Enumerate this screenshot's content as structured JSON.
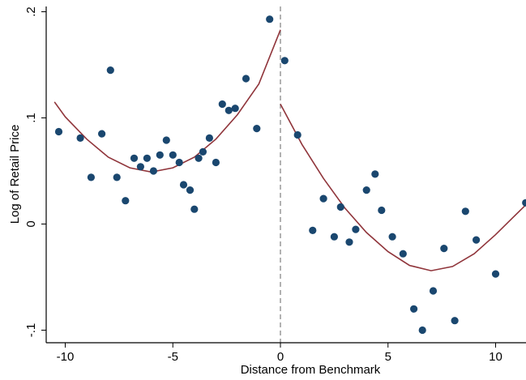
{
  "chart_data": {
    "type": "scatter",
    "title": "",
    "xlabel": "Distance from Benchmark",
    "ylabel": "Log of Retail Price",
    "xlim": [
      -10.5,
      11.4
    ],
    "ylim": [
      -0.1,
      0.2
    ],
    "x_ticks": [
      {
        "value": -10,
        "label": "-10"
      },
      {
        "value": -5,
        "label": "-5"
      },
      {
        "value": 0,
        "label": "0"
      },
      {
        "value": 5,
        "label": "5"
      },
      {
        "value": 10,
        "label": "10"
      }
    ],
    "y_ticks": [
      {
        "value": -0.1,
        "label": "-.1"
      },
      {
        "value": 0,
        "label": "0"
      },
      {
        "value": 0.1,
        "label": ".1"
      },
      {
        "value": 0.2,
        "label": ".2"
      }
    ],
    "grid": false,
    "cutoff_line": {
      "x": 0,
      "style": "dashed",
      "color": "#999999"
    },
    "colors": {
      "points": "#1a476f",
      "fit": "#90353b",
      "axis": "#000000"
    },
    "points": [
      {
        "x": -10.3,
        "y": 0.087
      },
      {
        "x": -9.3,
        "y": 0.081
      },
      {
        "x": -8.8,
        "y": 0.044
      },
      {
        "x": -8.3,
        "y": 0.085
      },
      {
        "x": -7.9,
        "y": 0.145
      },
      {
        "x": -7.6,
        "y": 0.044
      },
      {
        "x": -7.2,
        "y": 0.022
      },
      {
        "x": -6.8,
        "y": 0.062
      },
      {
        "x": -6.5,
        "y": 0.054
      },
      {
        "x": -6.2,
        "y": 0.062
      },
      {
        "x": -5.9,
        "y": 0.05
      },
      {
        "x": -5.6,
        "y": 0.065
      },
      {
        "x": -5.3,
        "y": 0.079
      },
      {
        "x": -5.0,
        "y": 0.065
      },
      {
        "x": -4.7,
        "y": 0.058
      },
      {
        "x": -4.5,
        "y": 0.037
      },
      {
        "x": -4.2,
        "y": 0.032
      },
      {
        "x": -4.0,
        "y": 0.014
      },
      {
        "x": -3.8,
        "y": 0.062
      },
      {
        "x": -3.6,
        "y": 0.068
      },
      {
        "x": -3.3,
        "y": 0.081
      },
      {
        "x": -3.0,
        "y": 0.058
      },
      {
        "x": -2.7,
        "y": 0.113
      },
      {
        "x": -2.4,
        "y": 0.107
      },
      {
        "x": -2.1,
        "y": 0.109
      },
      {
        "x": -1.6,
        "y": 0.137
      },
      {
        "x": -1.1,
        "y": 0.09
      },
      {
        "x": -0.5,
        "y": 0.193
      },
      {
        "x": 0.2,
        "y": 0.154
      },
      {
        "x": 0.8,
        "y": 0.084
      },
      {
        "x": 1.5,
        "y": -0.006
      },
      {
        "x": 2.0,
        "y": 0.024
      },
      {
        "x": 2.5,
        "y": -0.012
      },
      {
        "x": 2.8,
        "y": 0.016
      },
      {
        "x": 3.2,
        "y": -0.017
      },
      {
        "x": 3.5,
        "y": -0.005
      },
      {
        "x": 4.0,
        "y": 0.032
      },
      {
        "x": 4.4,
        "y": 0.047
      },
      {
        "x": 4.7,
        "y": 0.013
      },
      {
        "x": 5.2,
        "y": -0.012
      },
      {
        "x": 5.7,
        "y": -0.028
      },
      {
        "x": 6.2,
        "y": -0.08
      },
      {
        "x": 6.6,
        "y": -0.1
      },
      {
        "x": 7.1,
        "y": -0.063
      },
      {
        "x": 7.6,
        "y": -0.023
      },
      {
        "x": 8.1,
        "y": -0.091
      },
      {
        "x": 8.6,
        "y": 0.012
      },
      {
        "x": 9.1,
        "y": -0.015
      },
      {
        "x": 10.0,
        "y": -0.047
      },
      {
        "x": 11.4,
        "y": 0.02
      }
    ],
    "fit_left": {
      "x": [
        -10.5,
        -10.0,
        -9.0,
        -8.0,
        -7.0,
        -6.0,
        -5.0,
        -4.0,
        -3.0,
        -2.0,
        -1.0,
        0.0
      ],
      "y": [
        0.115,
        0.101,
        0.08,
        0.063,
        0.053,
        0.049,
        0.053,
        0.063,
        0.08,
        0.103,
        0.132,
        0.183
      ]
    },
    "fit_right": {
      "x": [
        0.0,
        1.0,
        2.0,
        3.0,
        4.0,
        5.0,
        6.0,
        7.0,
        8.0,
        9.0,
        10.0,
        11.4
      ],
      "y": [
        0.113,
        0.075,
        0.043,
        0.015,
        -0.008,
        -0.026,
        -0.039,
        -0.044,
        -0.04,
        -0.028,
        -0.01,
        0.018
      ]
    }
  }
}
